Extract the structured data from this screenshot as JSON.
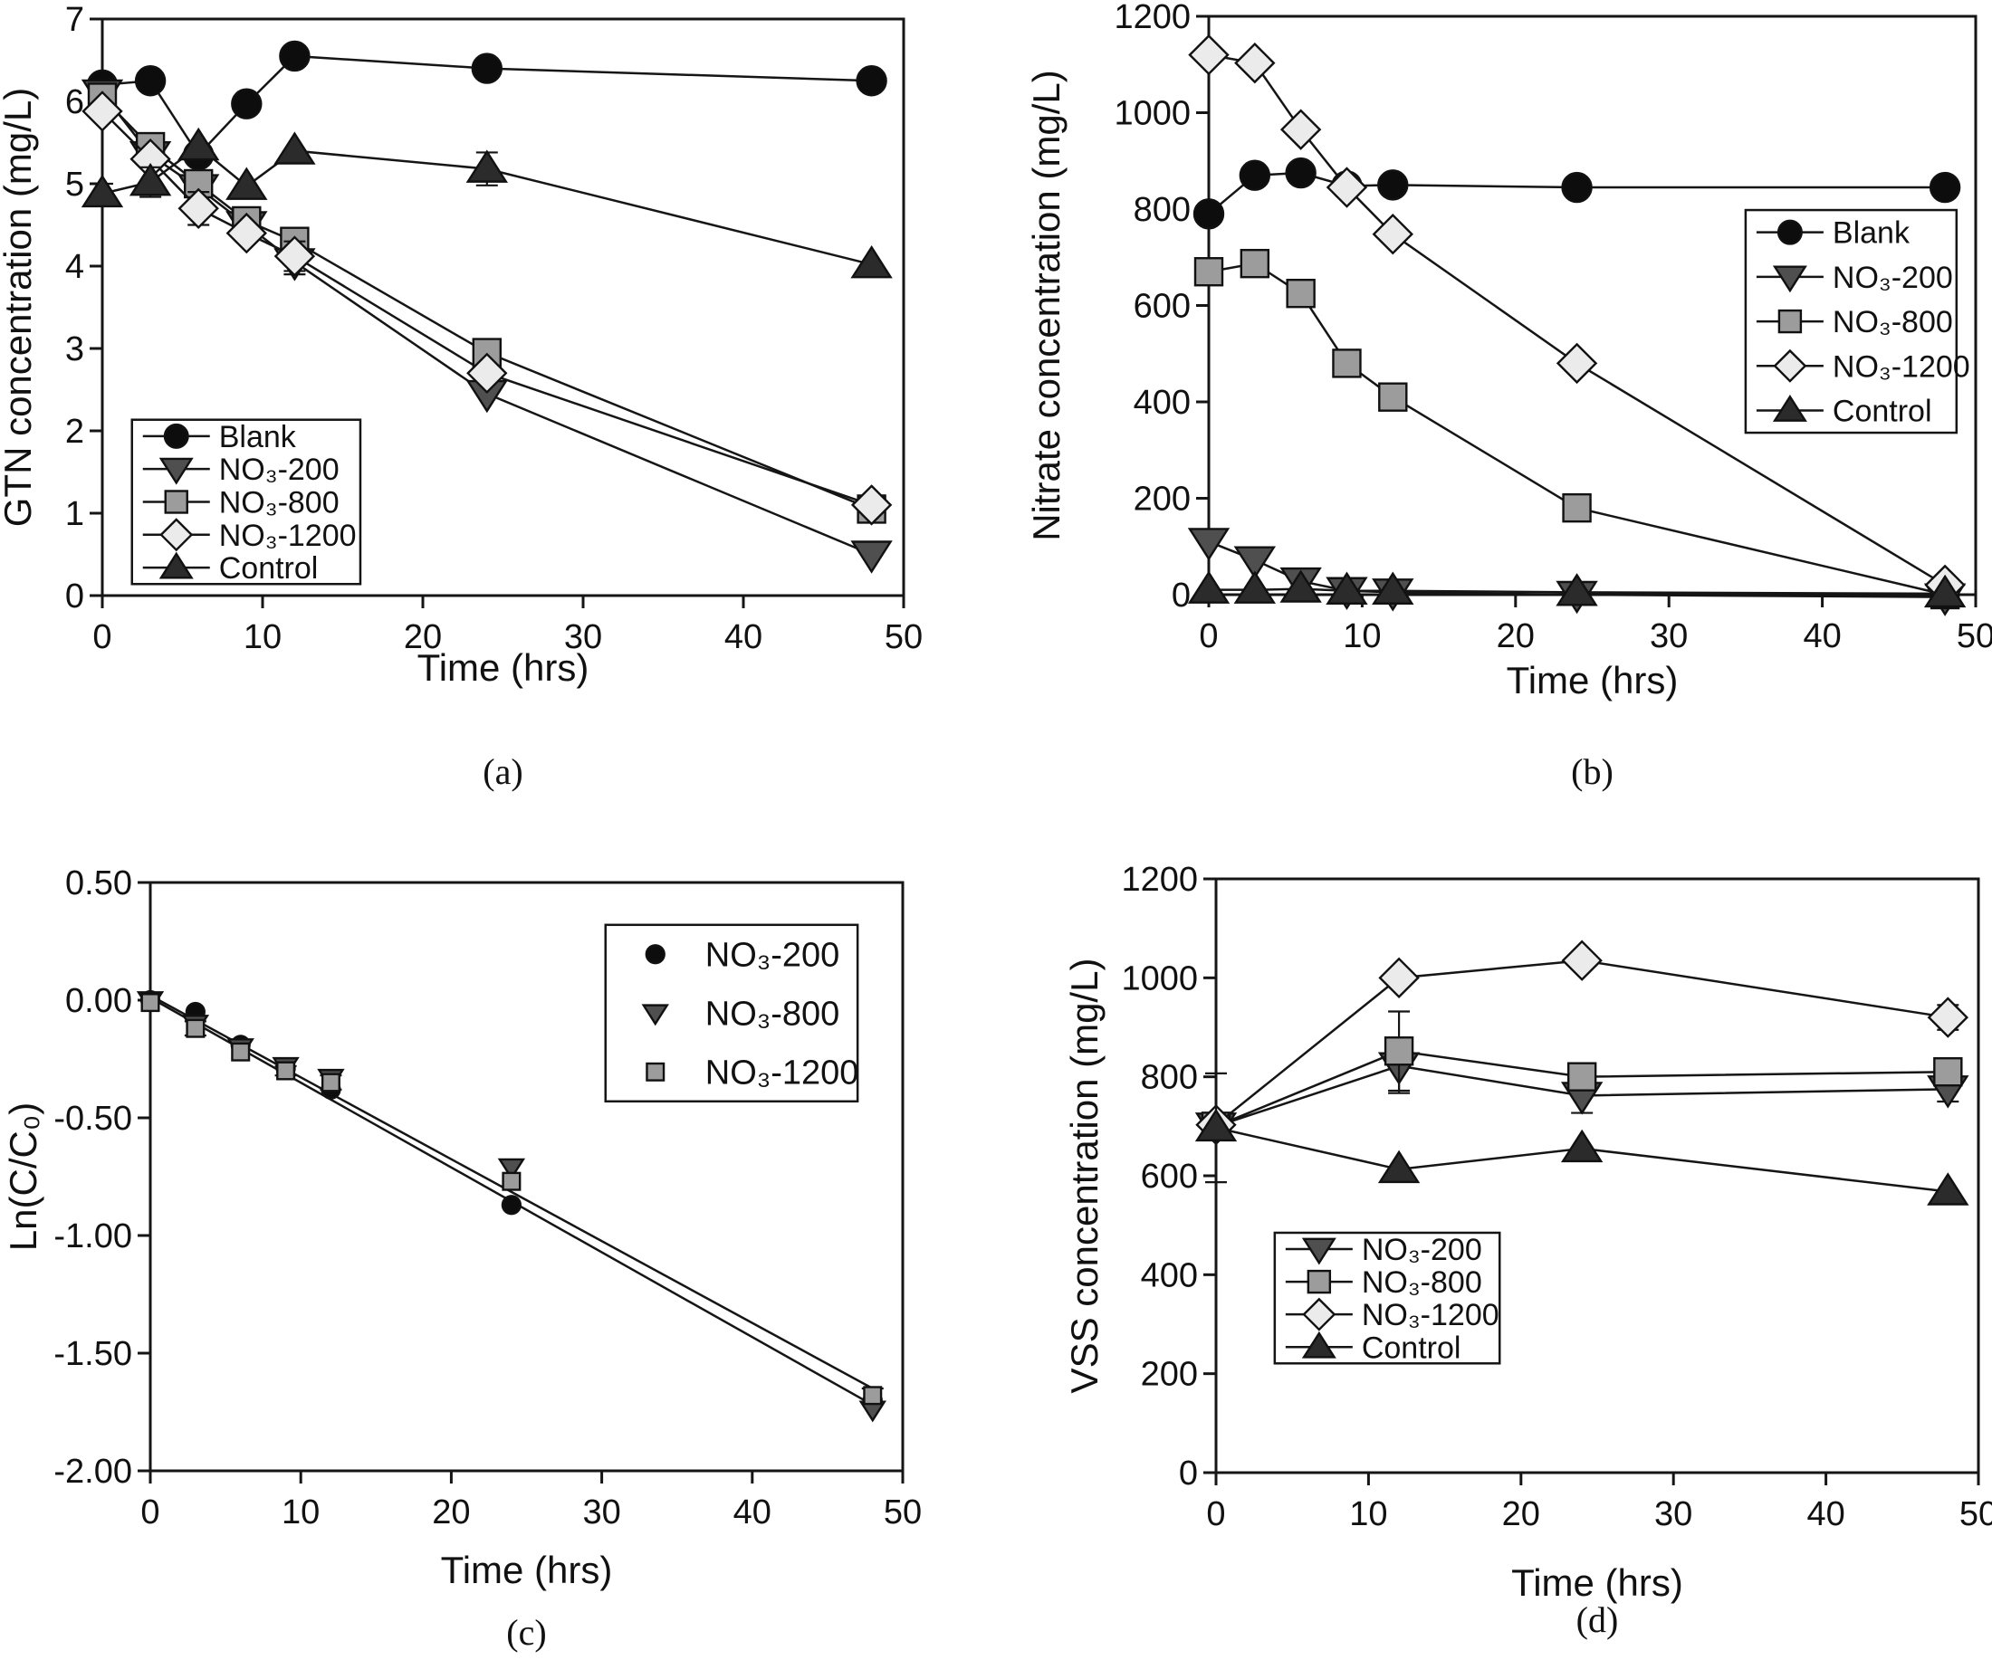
{
  "figure": {
    "background": "#ffffff",
    "line_color": "#151515",
    "marker_stroke": "#111111"
  },
  "chart_data": [
    {
      "id": "a",
      "type": "line",
      "caption": "(a)",
      "xlabel": "Time (hrs)",
      "ylabel": "GTN concentration (mg/L)",
      "xlim": [
        0,
        50
      ],
      "ylim": [
        0,
        7
      ],
      "xticks": [
        0,
        10,
        20,
        30,
        40,
        50
      ],
      "yticks": [
        0,
        1,
        2,
        3,
        4,
        5,
        6,
        7
      ],
      "x": [
        0,
        3,
        6,
        9,
        12,
        24,
        48
      ],
      "series": [
        {
          "name": "Blank",
          "marker": "circle",
          "color": "#0d0d0d",
          "values": [
            6.2,
            6.25,
            5.35,
            5.97,
            6.55,
            6.4,
            6.25
          ]
        },
        {
          "name": "NO₃-200",
          "marker": "tri-down",
          "color": "#4f4f4f",
          "values": [
            6.1,
            5.35,
            4.95,
            4.5,
            4.05,
            2.45,
            0.5
          ],
          "err": [
            0,
            0,
            0,
            0,
            0.15,
            0,
            0
          ]
        },
        {
          "name": "NO₃-800",
          "marker": "square",
          "color": "#9c9c9c",
          "values": [
            6.05,
            5.45,
            5.0,
            4.55,
            4.3,
            2.95,
            1.05
          ],
          "err": [
            0,
            0.12,
            0,
            0,
            0,
            0,
            0
          ]
        },
        {
          "name": "NO₃-1200",
          "marker": "diamond",
          "color": "#ebebeb",
          "values": [
            5.88,
            5.3,
            4.7,
            4.4,
            4.12,
            2.7,
            1.1
          ],
          "err": [
            0,
            0,
            0.2,
            0,
            0.18,
            0,
            0
          ]
        },
        {
          "name": "Control",
          "marker": "tri-up",
          "color": "#2b2b2b",
          "values": [
            4.88,
            5.02,
            5.45,
            4.97,
            5.4,
            5.18,
            4.02
          ],
          "err": [
            0.12,
            0.18,
            0,
            0,
            0,
            0.2,
            0
          ]
        }
      ],
      "legend": {
        "fx": 0.037,
        "fy": 0.695,
        "fw": 0.285,
        "fh": 0.285,
        "lines": true,
        "position": "lower-left"
      }
    },
    {
      "id": "b",
      "type": "line",
      "caption": "(b)",
      "xlabel": "Time (hrs)",
      "ylabel": "Nitrate concentration (mg/L)",
      "xlim": [
        0,
        50
      ],
      "ylim": [
        0,
        1200
      ],
      "xticks": [
        0,
        10,
        20,
        30,
        40,
        50
      ],
      "yticks": [
        0,
        200,
        400,
        600,
        800,
        1000,
        1200
      ],
      "x": [
        0,
        3,
        6,
        9,
        12,
        24,
        48
      ],
      "series": [
        {
          "name": "Blank",
          "marker": "circle",
          "color": "#0d0d0d",
          "values": [
            790,
            870,
            875,
            848,
            850,
            845,
            845
          ]
        },
        {
          "name": "NO₃-200",
          "marker": "tri-down",
          "color": "#4f4f4f",
          "values": [
            110,
            72,
            28,
            8,
            5,
            0,
            -5
          ]
        },
        {
          "name": "NO₃-800",
          "marker": "square",
          "color": "#9c9c9c",
          "values": [
            670,
            687,
            625,
            480,
            410,
            180,
            0
          ]
        },
        {
          "name": "NO₃-1200",
          "marker": "diamond",
          "color": "#ebebeb",
          "values": [
            1120,
            1103,
            965,
            845,
            748,
            480,
            20
          ]
        },
        {
          "name": "Control",
          "marker": "tri-up",
          "color": "#2b2b2b",
          "values": [
            10,
            10,
            12,
            8,
            8,
            5,
            2
          ]
        }
      ],
      "legend": {
        "fx": 0.7,
        "fy": 0.335,
        "fw": 0.275,
        "fh": 0.385,
        "lines": true,
        "position": "center-right"
      }
    },
    {
      "id": "c",
      "type": "scatter",
      "caption": "(c)",
      "xlabel": "Time (hrs)",
      "ylabel": "Ln(C/C₀)",
      "xlim": [
        0,
        50
      ],
      "ylim": [
        -2.0,
        0.5
      ],
      "xticks": [
        0,
        10,
        20,
        30,
        40,
        50
      ],
      "yticks": [
        0.5,
        0,
        -0.5,
        -1,
        -1.5,
        -2
      ],
      "ytick_labels": [
        "0.50",
        "0.00",
        "-0.50",
        "-1.00",
        "-1.50",
        "-2.00"
      ],
      "x": [
        0,
        3,
        6,
        9,
        12,
        24,
        48
      ],
      "marker_scale": 0.62,
      "fit_lines": [
        {
          "x1": 0,
          "y1": 0.01,
          "x2": 48,
          "y2": -1.72
        },
        {
          "x1": 0,
          "y1": 0.02,
          "x2": 48,
          "y2": -1.65
        }
      ],
      "series": [
        {
          "name": "NO₃-200",
          "marker": "circle",
          "color": "#0d0d0d",
          "line": false,
          "values": [
            0.0,
            -0.05,
            -0.19,
            -0.29,
            -0.38,
            -0.87,
            -1.7
          ]
        },
        {
          "name": "NO₃-800",
          "marker": "tri-down",
          "color": "#4f4f4f",
          "line": false,
          "values": [
            0.0,
            -0.1,
            -0.2,
            -0.28,
            -0.33,
            -0.71,
            -1.74
          ]
        },
        {
          "name": "NO₃-1200",
          "marker": "square",
          "color": "#9c9c9c",
          "line": false,
          "values": [
            -0.01,
            -0.12,
            -0.22,
            -0.3,
            -0.35,
            -0.77,
            -1.68
          ],
          "err": [
            0,
            0.03,
            0,
            0.02,
            0.03,
            0,
            0.03
          ]
        }
      ],
      "legend": {
        "fx": 0.605,
        "fy": 0.072,
        "fw": 0.335,
        "fh": 0.3,
        "lines": false,
        "position": "upper-right"
      }
    },
    {
      "id": "d",
      "type": "line",
      "caption": "(d)",
      "xlabel": "Time (hrs)",
      "ylabel": "VSS concentration (mg/L)",
      "xlim": [
        0,
        50
      ],
      "ylim": [
        0,
        1200
      ],
      "xticks": [
        0,
        10,
        20,
        30,
        40,
        50
      ],
      "yticks": [
        0,
        200,
        400,
        600,
        800,
        1000,
        1200
      ],
      "x": [
        0,
        12,
        24,
        48
      ],
      "series": [
        {
          "name": "NO₃-200",
          "marker": "tri-down",
          "color": "#4f4f4f",
          "values": [
            700,
            822,
            762,
            775
          ],
          "err": [
            0,
            55,
            35,
            25
          ]
        },
        {
          "name": "NO₃-800",
          "marker": "square",
          "color": "#9c9c9c",
          "values": [
            700,
            852,
            800,
            810
          ],
          "err": [
            0,
            80,
            25,
            20
          ]
        },
        {
          "name": "NO₃-1200",
          "marker": "diamond",
          "color": "#ebebeb",
          "values": [
            703,
            1000,
            1035,
            920
          ],
          "err": [
            0,
            0,
            0,
            25
          ]
        },
        {
          "name": "Control",
          "marker": "tri-up",
          "color": "#2b2b2b",
          "values": [
            697,
            613,
            655,
            568
          ],
          "err": [
            110,
            0,
            0,
            0
          ]
        }
      ],
      "legend": {
        "fx": 0.077,
        "fy": 0.596,
        "fw": 0.295,
        "fh": 0.22,
        "lines": true,
        "position": "lower-left"
      }
    }
  ]
}
